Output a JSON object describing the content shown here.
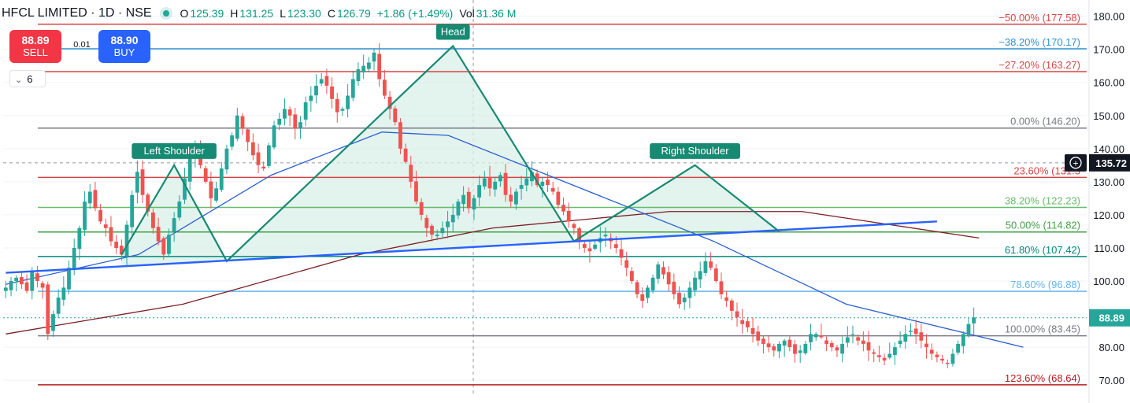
{
  "header": {
    "symbol": "HFCL LIMITED · 1D · NSE",
    "open_label": "O",
    "open": "125.39",
    "high_label": "H",
    "high": "131.25",
    "low_label": "L",
    "low": "123.30",
    "close_label": "C",
    "close": "126.79",
    "change": "+1.86 (+1.49%)",
    "vol_label": "Vol",
    "vol": "31.36 M"
  },
  "trade": {
    "sell_price": "88.89",
    "sell_label": "SELL",
    "buy_price": "88.90",
    "buy_label": "BUY",
    "spread": "0.01"
  },
  "indicators": {
    "count": "6",
    "chevron_icon": "chevron-down-icon"
  },
  "colors": {
    "up": "#26a69a",
    "down": "#ef5350",
    "pattern": "#168a72",
    "pattern_fill": "#d9efe8",
    "trendline": "#2962ff",
    "ma50": "#2a5fd0",
    "ma200": "#7a1f24"
  },
  "chart_data": {
    "type": "candlestick",
    "title": "HFCL LIMITED · 1D · NSE",
    "ylim": [
      66,
      183
    ],
    "y_ticks": [
      "70.00",
      "80.00",
      "90.00",
      "100.00",
      "110.00",
      "120.00",
      "130.00",
      "140.00",
      "150.00",
      "160.00",
      "170.00",
      "180.00"
    ],
    "current_price": "88.89",
    "crosshair_price": "135.72",
    "fib_levels": [
      {
        "label": "−50.00% (177.58)",
        "value": 177.58,
        "color": "#d64545"
      },
      {
        "label": "−38.20% (170.17)",
        "value": 170.17,
        "color": "#2e8fd0"
      },
      {
        "label": "−27.20% (163.27)",
        "value": 163.27,
        "color": "#d64545"
      },
      {
        "label": "0.00% (146.20)",
        "value": 146.2,
        "color": "#787b86"
      },
      {
        "label": "23.60% (131.3",
        "value": 131.3,
        "color": "#d64545"
      },
      {
        "label": "38.20% (122.23)",
        "value": 122.23,
        "color": "#66bb6a"
      },
      {
        "label": "50.00% (114.82)",
        "value": 114.82,
        "color": "#43a047"
      },
      {
        "label": "61.80% (107.42)",
        "value": 107.42,
        "color": "#00897b"
      },
      {
        "label": "78.60% (96.88)",
        "value": 96.88,
        "color": "#64b5f6"
      },
      {
        "label": "100.00% (83.45)",
        "value": 83.45,
        "color": "#787b86"
      },
      {
        "label": "123.60% (68.64)",
        "value": 68.64,
        "color": "#b71c1c"
      }
    ],
    "pattern_labels": [
      "Left Shoulder",
      "Head",
      "Right Shoulder"
    ],
    "pattern_points": [
      {
        "i": 22,
        "p": 108
      },
      {
        "i": 32,
        "p": 135
      },
      {
        "i": 42,
        "p": 106
      },
      {
        "i": 85,
        "p": 171
      },
      {
        "i": 108,
        "p": 112
      },
      {
        "i": 131,
        "p": 135
      },
      {
        "i": 147,
        "p": 115
      }
    ],
    "neckline": [
      {
        "i": 0,
        "p": 102.5
      },
      {
        "i": 177,
        "p": 118
      }
    ],
    "close": [
      98,
      100,
      101,
      99,
      97,
      103,
      100,
      98,
      84,
      90,
      95,
      98,
      104,
      110,
      116,
      124,
      127,
      122,
      118,
      116,
      112,
      110,
      108,
      117,
      126,
      133,
      126,
      121,
      116,
      112,
      108,
      114,
      119,
      124,
      131,
      137,
      140,
      135,
      130,
      125,
      128,
      134,
      140,
      144,
      150,
      146,
      142,
      138,
      135,
      134,
      141,
      147,
      149,
      152,
      150,
      146,
      148,
      154,
      156,
      159,
      161,
      159,
      155,
      151,
      152,
      156,
      161,
      164,
      165,
      166,
      169,
      161,
      156,
      152,
      148,
      140,
      136,
      130,
      124,
      120,
      116,
      114,
      114,
      116,
      118,
      120,
      124,
      126,
      122,
      125,
      129,
      131,
      128,
      130,
      132,
      126,
      124,
      127,
      129,
      131,
      133,
      129,
      130,
      129,
      127,
      123,
      121,
      118,
      116,
      112,
      110,
      109,
      111,
      113,
      114,
      112,
      110,
      107,
      104,
      100,
      96,
      94,
      98,
      101,
      105,
      102,
      99,
      96,
      93,
      95,
      98,
      101,
      103,
      106,
      104,
      100,
      96,
      94,
      91,
      89,
      87,
      86,
      84,
      82,
      81,
      80,
      79,
      81,
      82,
      80,
      78,
      79,
      81,
      84,
      84,
      83,
      81,
      80,
      79,
      81,
      83,
      84,
      82,
      81,
      79,
      78,
      77,
      76,
      78,
      80,
      82,
      84,
      85,
      84,
      82,
      80,
      78,
      77,
      76,
      75,
      78,
      81,
      84,
      87,
      89
    ],
    "ma_slow": [
      [
        0,
        84
      ],
      [
        40,
        93
      ],
      [
        80,
        108
      ],
      [
        110,
        116
      ],
      [
        150,
        121
      ],
      [
        180,
        121
      ],
      [
        220,
        113
      ]
    ],
    "ma_fast": [
      [
        0,
        99
      ],
      [
        30,
        108
      ],
      [
        60,
        132
      ],
      [
        85,
        145
      ],
      [
        100,
        144
      ],
      [
        130,
        128
      ],
      [
        160,
        112
      ],
      [
        190,
        93
      ],
      [
        230,
        80
      ]
    ]
  }
}
